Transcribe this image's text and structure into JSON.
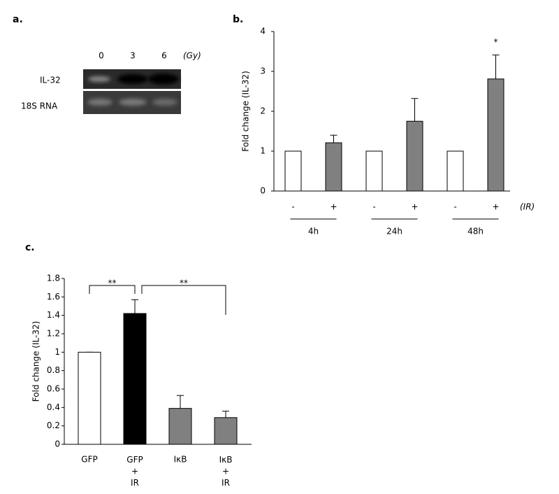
{
  "panel_a": {
    "label": "a.",
    "lanes": [
      "0",
      "3",
      "6"
    ],
    "unit": "(Gy)",
    "rows": [
      "IL-32",
      "18S RNA"
    ]
  },
  "chart_data": [
    {
      "type": "bar",
      "label": "b.",
      "y_label": "Fold change (IL-32)",
      "categories": [
        "-",
        "+",
        "-",
        "+",
        "-",
        "+"
      ],
      "groups": [
        "4h",
        "24h",
        "48h"
      ],
      "x_label": "(IR)",
      "values": [
        1,
        1.21,
        1,
        1.75,
        1,
        2.81
      ],
      "errors": [
        0,
        0.19,
        0,
        0.57,
        0,
        0.6
      ],
      "colors": [
        "#ffffff",
        "#808080",
        "#ffffff",
        "#808080",
        "#ffffff",
        "#808080"
      ],
      "ylim": [
        0,
        4
      ],
      "yticks": [
        0,
        1,
        2,
        3,
        4
      ],
      "annotations": [
        {
          "index": 5,
          "label": "*"
        }
      ]
    },
    {
      "type": "bar",
      "label": "c.",
      "y_label": "Fold change (IL-32)",
      "categories": [
        "GFP",
        "GFP\n+\nIR",
        "IκB",
        "IκB\n+\nIR"
      ],
      "values": [
        1,
        1.42,
        0.39,
        0.29
      ],
      "errors": [
        0,
        0.15,
        0.14,
        0.07
      ],
      "colors": [
        "#ffffff",
        "#000000",
        "#808080",
        "#808080"
      ],
      "ylim": [
        0,
        1.8
      ],
      "yticks": [
        0,
        0.2,
        0.4,
        0.6,
        0.8,
        1,
        1.2,
        1.4,
        1.6,
        1.8
      ],
      "significance": [
        {
          "from": 0,
          "to": 1,
          "label": "**"
        },
        {
          "from": 1,
          "to": 3,
          "label": "**"
        }
      ]
    }
  ]
}
